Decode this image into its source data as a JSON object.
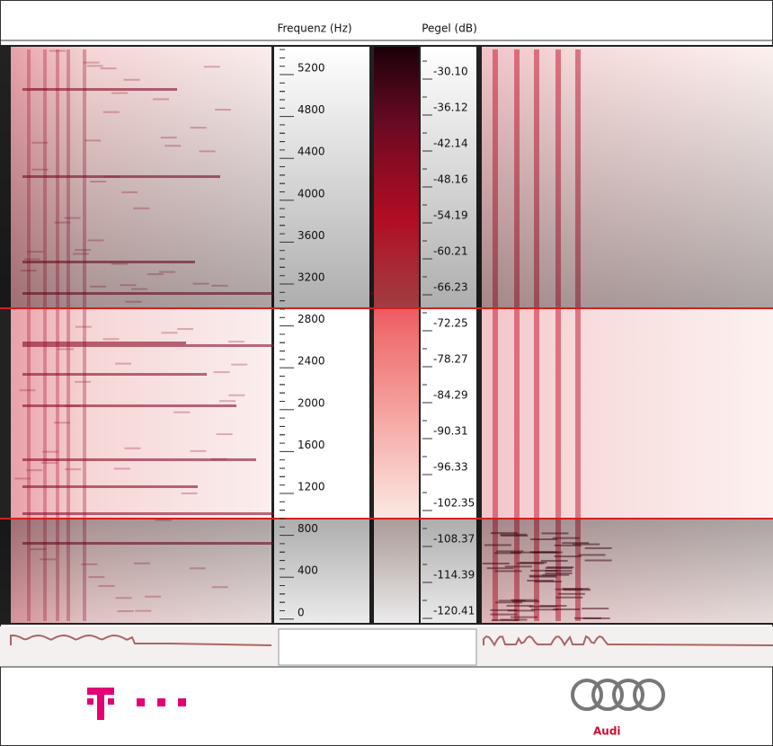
{
  "header": {
    "frequency_label": "Frequenz (Hz)",
    "level_label": "Pegel (dB)"
  },
  "frequency_scale": {
    "ticks": [
      "5200",
      "4800",
      "4400",
      "4000",
      "3600",
      "3200",
      "2800",
      "2400",
      "2000",
      "1600",
      "1200",
      "800",
      "400",
      "0"
    ]
  },
  "level_scale": {
    "ticks": [
      "-30.10",
      "-36.12",
      "-42.14",
      "-48.16",
      "-54.19",
      "-60.21",
      "-66.23",
      "-72.25",
      "-78.27",
      "-84.29",
      "-90.31",
      "-96.33",
      "-102.35",
      "-108.37",
      "-114.39",
      "-120.41"
    ]
  },
  "logos": {
    "right_label": "Audi"
  }
}
